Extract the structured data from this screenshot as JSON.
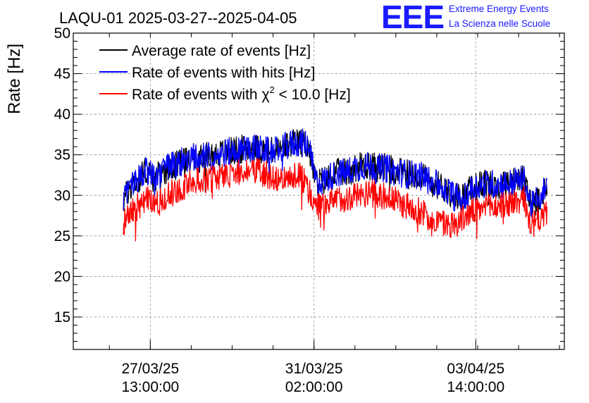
{
  "title": "LAQU-01 2025-03-27--2025-04-05",
  "logo": {
    "mark": "EEE",
    "line1": "Extreme Energy Events",
    "line2": "La Scienza nelle Scuole",
    "color": "#1a1aff"
  },
  "chart_data": {
    "type": "line",
    "title": "LAQU-01 2025-03-27--2025-04-05",
    "xlabel": "",
    "ylabel": "Rate [Hz]",
    "ylim": [
      11,
      50
    ],
    "xlim_hours": [
      -40,
      215
    ],
    "y_ticks": [
      15,
      20,
      25,
      30,
      35,
      40,
      45,
      50
    ],
    "x_ticks": [
      {
        "hours": 0,
        "date": "27/03/25",
        "time": "13:00:00"
      },
      {
        "hours": 85,
        "date": "31/03/25",
        "time": "02:00:00"
      },
      {
        "hours": 169,
        "date": "03/04/25",
        "time": "14:00:00"
      }
    ],
    "x_unit_note": "x values are hours relative to 27/03/25 13:00:00",
    "grid": true,
    "legend_position": "top-left",
    "series": [
      {
        "name": "Average rate of events [Hz]",
        "color": "#000000",
        "x": [
          -14,
          -10,
          -6,
          -2,
          2,
          6,
          10,
          14,
          18,
          22,
          26,
          30,
          34,
          38,
          42,
          46,
          50,
          54,
          58,
          62,
          66,
          70,
          74,
          78,
          82,
          86,
          90,
          94,
          98,
          102,
          106,
          110,
          114,
          118,
          122,
          126,
          130,
          134,
          138,
          142,
          146,
          150,
          154,
          158,
          162,
          166,
          170,
          174,
          178,
          182,
          186,
          190,
          194,
          198,
          202,
          206
        ],
        "values": [
          29.3,
          31.2,
          32.0,
          33.2,
          31.8,
          32.8,
          33.6,
          33.8,
          34.4,
          34.6,
          34.6,
          34.8,
          35.0,
          35.2,
          35.4,
          35.6,
          35.8,
          35.8,
          35.6,
          35.4,
          35.5,
          36.0,
          36.4,
          36.5,
          36.2,
          31.6,
          31.8,
          32.4,
          32.8,
          32.8,
          33.4,
          33.6,
          33.6,
          33.4,
          33.4,
          33.0,
          32.8,
          32.6,
          32.6,
          32.2,
          31.6,
          31.2,
          30.8,
          29.8,
          29.8,
          30.6,
          31.2,
          31.4,
          31.4,
          31.4,
          31.4,
          31.8,
          31.9,
          28.6,
          29.8,
          31.2
        ]
      },
      {
        "name": "Rate of events with hits [Hz]",
        "color": "#0000ff",
        "x": [
          -14,
          -10,
          -6,
          -2,
          2,
          6,
          10,
          14,
          18,
          22,
          26,
          30,
          34,
          38,
          42,
          46,
          50,
          54,
          58,
          62,
          66,
          70,
          74,
          78,
          82,
          86,
          90,
          94,
          98,
          102,
          106,
          110,
          114,
          118,
          122,
          126,
          130,
          134,
          138,
          142,
          146,
          150,
          154,
          158,
          162,
          166,
          170,
          174,
          178,
          182,
          186,
          190,
          194,
          198,
          202,
          206
        ],
        "values": [
          29.3,
          31.2,
          32.0,
          33.2,
          31.8,
          32.8,
          33.6,
          33.8,
          34.4,
          34.6,
          34.6,
          34.8,
          35.0,
          35.2,
          35.4,
          35.6,
          35.8,
          35.8,
          35.6,
          35.4,
          35.5,
          36.0,
          36.4,
          36.5,
          36.2,
          31.6,
          31.8,
          32.4,
          32.8,
          32.8,
          33.4,
          33.6,
          33.6,
          33.4,
          33.4,
          33.0,
          32.8,
          32.6,
          32.6,
          32.2,
          31.6,
          31.2,
          30.8,
          29.8,
          29.8,
          30.6,
          31.2,
          31.4,
          31.4,
          31.4,
          31.4,
          31.8,
          31.9,
          28.6,
          29.8,
          31.2
        ]
      },
      {
        "name": "Rate of events with χ² < 10.0 [Hz]",
        "color": "#ff0000",
        "x": [
          -14,
          -10,
          -6,
          -2,
          2,
          6,
          10,
          14,
          18,
          22,
          26,
          30,
          34,
          38,
          42,
          46,
          50,
          54,
          58,
          62,
          66,
          70,
          74,
          78,
          82,
          86,
          90,
          94,
          98,
          102,
          106,
          110,
          114,
          118,
          122,
          126,
          130,
          134,
          138,
          142,
          146,
          150,
          154,
          158,
          162,
          166,
          170,
          174,
          178,
          182,
          186,
          190,
          194,
          198,
          202,
          206
        ],
        "values": [
          26.4,
          28.0,
          28.7,
          29.6,
          28.6,
          29.4,
          30.2,
          30.6,
          31.2,
          31.6,
          31.8,
          32.0,
          32.2,
          32.4,
          32.6,
          32.8,
          32.9,
          33.0,
          32.8,
          32.4,
          32.2,
          32.4,
          32.6,
          32.4,
          30.8,
          28.6,
          28.8,
          29.2,
          29.6,
          29.6,
          30.0,
          30.2,
          30.3,
          30.0,
          29.9,
          29.5,
          29.0,
          28.6,
          28.3,
          27.8,
          27.0,
          26.8,
          26.4,
          26.4,
          27.1,
          27.8,
          28.2,
          28.5,
          28.6,
          28.7,
          29.0,
          29.2,
          29.4,
          26.2,
          27.0,
          28.0
        ]
      }
    ],
    "legend": [
      {
        "label_text": "Average rate of events [Hz]",
        "color": "#000000"
      },
      {
        "label_text": "Rate of events with hits [Hz]",
        "color": "#0000ff"
      },
      {
        "label_pre": "Rate of events with ",
        "label_chi": "χ",
        "label_sup": "2",
        "label_post": " < 10.0 [Hz]",
        "color": "#ff0000"
      }
    ]
  }
}
